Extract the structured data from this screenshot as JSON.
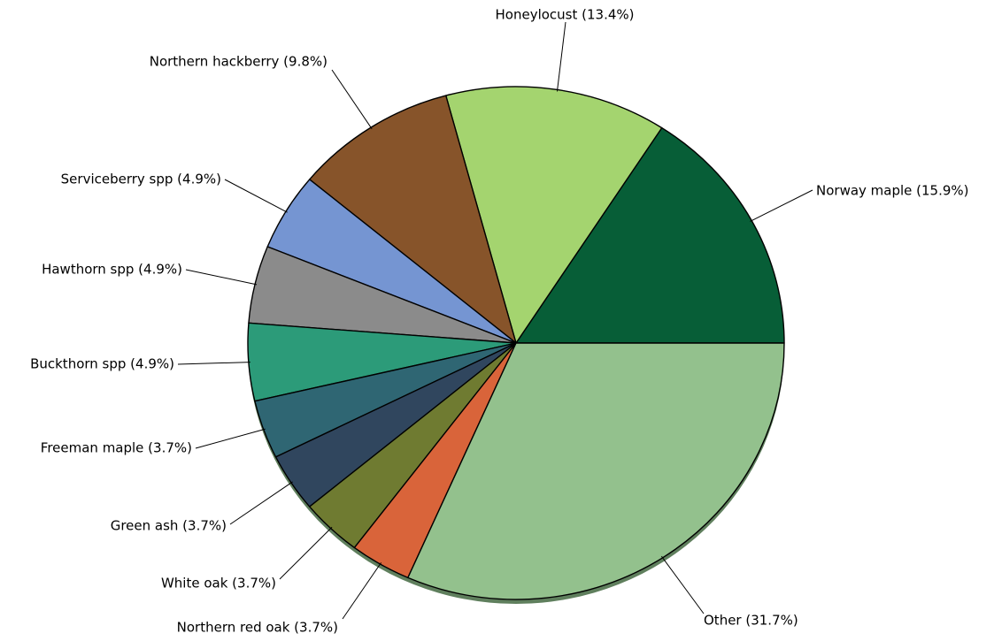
{
  "chart_data": {
    "type": "pie",
    "title": "",
    "start": "3 o'clock",
    "direction": "counterclockwise",
    "slices": [
      {
        "label": "Norway maple (15.9%)",
        "value": 15.9,
        "color": "#075e37"
      },
      {
        "label": "Honeylocust (13.4%)",
        "value": 13.4,
        "color": "#a4d46f"
      },
      {
        "label": "Northern hackberry (9.8%)",
        "value": 9.8,
        "color": "#87542a"
      },
      {
        "label": "Serviceberry spp (4.9%)",
        "value": 4.9,
        "color": "#7595d2"
      },
      {
        "label": "Hawthorn spp (4.9%)",
        "value": 4.9,
        "color": "#8b8b8b"
      },
      {
        "label": "Buckthorn spp (4.9%)",
        "value": 4.9,
        "color": "#2c9b79"
      },
      {
        "label": "Freeman maple (3.7%)",
        "value": 3.7,
        "color": "#2f6673"
      },
      {
        "label": "Green ash (3.7%)",
        "value": 3.7,
        "color": "#30465e"
      },
      {
        "label": "White oak (3.7%)",
        "value": 3.7,
        "color": "#6f7b31"
      },
      {
        "label": "Northern red oak (3.7%)",
        "value": 3.7,
        "color": "#d9643a"
      },
      {
        "label": "Other (31.7%)",
        "value": 31.7,
        "color": "#93c18d"
      }
    ]
  }
}
